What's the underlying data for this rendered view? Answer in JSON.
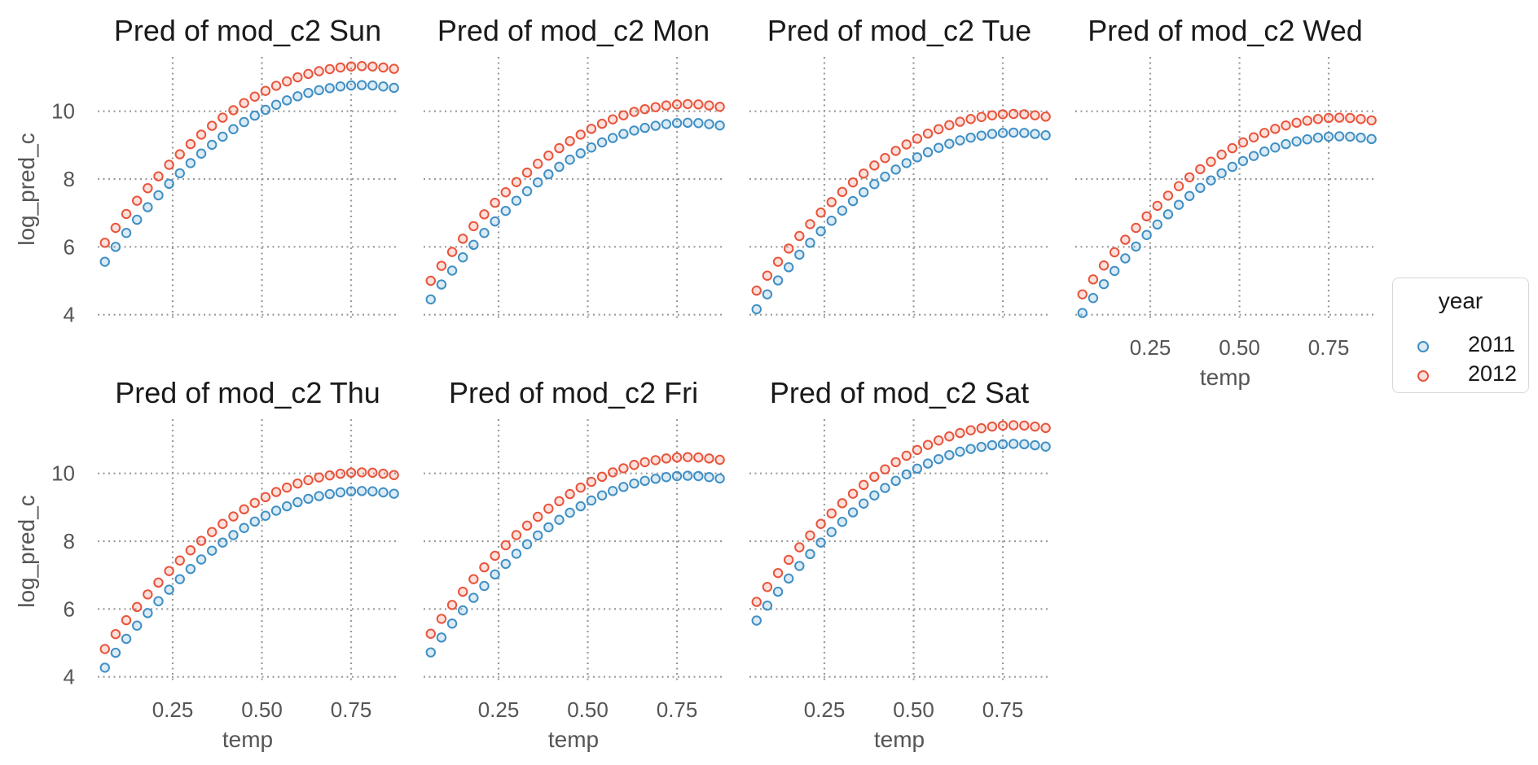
{
  "chart_data": {
    "type": "scatter",
    "facet_by": "weekday",
    "legend": {
      "title": "year",
      "placement": "right",
      "items": [
        {
          "label": "2011",
          "color": "#3f8fc4"
        },
        {
          "label": "2012",
          "color": "#e8543b"
        }
      ]
    },
    "shared": {
      "x_values": [
        0.06,
        0.09,
        0.12,
        0.15,
        0.18,
        0.21,
        0.24,
        0.27,
        0.3,
        0.33,
        0.36,
        0.39,
        0.42,
        0.45,
        0.48,
        0.51,
        0.54,
        0.57,
        0.6,
        0.63,
        0.66,
        0.69,
        0.72,
        0.75,
        0.78,
        0.81,
        0.84,
        0.87
      ],
      "xlim": [
        0.04,
        0.88
      ],
      "ylim": [
        3.8,
        11.6
      ],
      "x_ticks": [
        0.25,
        0.5,
        0.75
      ],
      "x_tick_labels": [
        "0.25",
        "0.50",
        "0.75"
      ],
      "y_ticks": [
        4,
        6,
        8,
        10
      ],
      "y_tick_labels": [
        "4",
        "6",
        "8",
        "10"
      ],
      "xlabel": "temp",
      "ylabel": "log_pred_c",
      "grid": true
    },
    "panels": [
      {
        "title": "Pred of mod_c2 Sun",
        "series": [
          {
            "name": "2011",
            "y": [
              5.56,
              6.0,
              6.41,
              6.8,
              7.17,
              7.52,
              7.86,
              8.17,
              8.47,
              8.75,
              9.01,
              9.25,
              9.47,
              9.68,
              9.87,
              10.04,
              10.19,
              10.32,
              10.44,
              10.54,
              10.62,
              10.68,
              10.73,
              10.76,
              10.77,
              10.76,
              10.73,
              10.69
            ]
          },
          {
            "name": "2012",
            "y": [
              6.12,
              6.56,
              6.97,
              7.36,
              7.73,
              8.08,
              8.42,
              8.73,
              9.03,
              9.31,
              9.57,
              9.81,
              10.03,
              10.24,
              10.43,
              10.6,
              10.75,
              10.88,
              11.0,
              11.1,
              11.18,
              11.24,
              11.29,
              11.32,
              11.33,
              11.32,
              11.29,
              11.25
            ]
          }
        ]
      },
      {
        "title": "Pred of mod_c2 Mon",
        "series": [
          {
            "name": "2011",
            "y": [
              4.45,
              4.89,
              5.3,
              5.69,
              6.06,
              6.41,
              6.75,
              7.06,
              7.36,
              7.64,
              7.9,
              8.14,
              8.36,
              8.57,
              8.76,
              8.93,
              9.08,
              9.21,
              9.33,
              9.43,
              9.51,
              9.57,
              9.62,
              9.65,
              9.66,
              9.65,
              9.62,
              9.58
            ]
          },
          {
            "name": "2012",
            "y": [
              5.0,
              5.44,
              5.85,
              6.24,
              6.61,
              6.96,
              7.3,
              7.61,
              7.91,
              8.19,
              8.45,
              8.69,
              8.91,
              9.12,
              9.31,
              9.48,
              9.63,
              9.76,
              9.88,
              9.98,
              10.06,
              10.12,
              10.17,
              10.2,
              10.21,
              10.2,
              10.17,
              10.13
            ]
          }
        ]
      },
      {
        "title": "Pred of mod_c2 Tue",
        "series": [
          {
            "name": "2011",
            "y": [
              4.16,
              4.6,
              5.01,
              5.4,
              5.77,
              6.12,
              6.46,
              6.77,
              7.07,
              7.35,
              7.61,
              7.85,
              8.07,
              8.28,
              8.47,
              8.64,
              8.79,
              8.92,
              9.04,
              9.14,
              9.22,
              9.28,
              9.33,
              9.36,
              9.37,
              9.36,
              9.33,
              9.29
            ]
          },
          {
            "name": "2012",
            "y": [
              4.71,
              5.15,
              5.56,
              5.95,
              6.32,
              6.67,
              7.01,
              7.32,
              7.62,
              7.9,
              8.16,
              8.4,
              8.62,
              8.83,
              9.02,
              9.19,
              9.34,
              9.47,
              9.59,
              9.69,
              9.77,
              9.83,
              9.88,
              9.91,
              9.92,
              9.91,
              9.88,
              9.84
            ]
          }
        ]
      },
      {
        "title": "Pred of mod_c2 Wed",
        "series": [
          {
            "name": "2011",
            "y": [
              4.05,
              4.49,
              4.9,
              5.29,
              5.66,
              6.01,
              6.35,
              6.66,
              6.96,
              7.24,
              7.5,
              7.74,
              7.96,
              8.17,
              8.36,
              8.53,
              8.68,
              8.81,
              8.93,
              9.03,
              9.11,
              9.17,
              9.22,
              9.25,
              9.26,
              9.25,
              9.22,
              9.18
            ]
          },
          {
            "name": "2012",
            "y": [
              4.6,
              5.04,
              5.45,
              5.84,
              6.21,
              6.56,
              6.9,
              7.21,
              7.51,
              7.79,
              8.05,
              8.29,
              8.51,
              8.72,
              8.91,
              9.08,
              9.23,
              9.36,
              9.48,
              9.58,
              9.66,
              9.72,
              9.77,
              9.8,
              9.81,
              9.8,
              9.77,
              9.73
            ]
          }
        ]
      },
      {
        "title": "Pred of mod_c2 Thu",
        "series": [
          {
            "name": "2011",
            "y": [
              4.27,
              4.71,
              5.12,
              5.51,
              5.88,
              6.23,
              6.57,
              6.88,
              7.18,
              7.46,
              7.72,
              7.96,
              8.18,
              8.39,
              8.58,
              8.75,
              8.9,
              9.03,
              9.15,
              9.25,
              9.33,
              9.39,
              9.44,
              9.47,
              9.48,
              9.47,
              9.44,
              9.4
            ]
          },
          {
            "name": "2012",
            "y": [
              4.82,
              5.26,
              5.67,
              6.06,
              6.43,
              6.78,
              7.12,
              7.43,
              7.73,
              8.01,
              8.27,
              8.51,
              8.73,
              8.94,
              9.13,
              9.3,
              9.45,
              9.58,
              9.7,
              9.8,
              9.88,
              9.94,
              9.99,
              10.02,
              10.03,
              10.02,
              9.99,
              9.95
            ]
          }
        ]
      },
      {
        "title": "Pred of mod_c2 Fri",
        "series": [
          {
            "name": "2011",
            "y": [
              4.72,
              5.16,
              5.57,
              5.96,
              6.33,
              6.68,
              7.02,
              7.33,
              7.63,
              7.91,
              8.17,
              8.41,
              8.63,
              8.84,
              9.03,
              9.2,
              9.35,
              9.48,
              9.6,
              9.7,
              9.78,
              9.84,
              9.89,
              9.92,
              9.93,
              9.92,
              9.89,
              9.85
            ]
          },
          {
            "name": "2012",
            "y": [
              5.27,
              5.71,
              6.12,
              6.51,
              6.88,
              7.23,
              7.57,
              7.88,
              8.18,
              8.46,
              8.72,
              8.96,
              9.18,
              9.39,
              9.58,
              9.75,
              9.9,
              10.03,
              10.15,
              10.25,
              10.33,
              10.39,
              10.44,
              10.47,
              10.48,
              10.47,
              10.44,
              10.4
            ]
          }
        ]
      },
      {
        "title": "Pred of mod_c2 Sat",
        "series": [
          {
            "name": "2011",
            "y": [
              5.66,
              6.1,
              6.51,
              6.9,
              7.27,
              7.62,
              7.96,
              8.27,
              8.57,
              8.85,
              9.11,
              9.35,
              9.57,
              9.78,
              9.97,
              10.14,
              10.29,
              10.42,
              10.54,
              10.64,
              10.72,
              10.78,
              10.83,
              10.86,
              10.87,
              10.86,
              10.83,
              10.79
            ]
          },
          {
            "name": "2012",
            "y": [
              6.21,
              6.65,
              7.06,
              7.45,
              7.82,
              8.17,
              8.51,
              8.82,
              9.12,
              9.4,
              9.66,
              9.9,
              10.12,
              10.33,
              10.52,
              10.69,
              10.84,
              10.97,
              11.09,
              11.19,
              11.27,
              11.33,
              11.38,
              11.41,
              11.42,
              11.41,
              11.38,
              11.34
            ]
          }
        ]
      }
    ]
  }
}
